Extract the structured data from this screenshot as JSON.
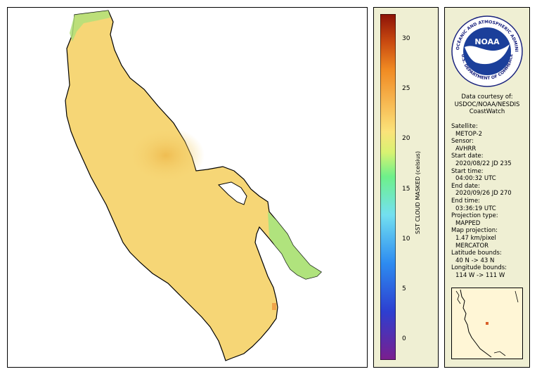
{
  "colorbar": {
    "label": "SST CLOUD MASKED (celsius)",
    "min": -2,
    "max": 32.5,
    "ticks": [
      "0",
      "5",
      "10",
      "15",
      "20",
      "25",
      "30"
    ]
  },
  "courtesy": {
    "line1": "Data courtesy of:",
    "line2": "USDOC/NOAA/NESDIS",
    "line3": "CoastWatch"
  },
  "logo": {
    "center_text": "NOAA",
    "ring_top": "NATIONAL OCEANIC AND ATMOSPHERIC ADMINISTRATION",
    "ring_bottom": "U.S. DEPARTMENT OF COMMERCE"
  },
  "metadata": [
    {
      "label": "Satellite:",
      "value": "METOP-2"
    },
    {
      "label": "Sensor:",
      "value": "AVHRR"
    },
    {
      "label": "Start date:",
      "value": "2020/08/22 JD 235"
    },
    {
      "label": "Start time:",
      "value": "04:00:32 UTC"
    },
    {
      "label": "End date:",
      "value": "2020/09/26 JD 270"
    },
    {
      "label": "End time:",
      "value": "03:36:19 UTC"
    },
    {
      "label": "Projection type:",
      "value": "MAPPED"
    },
    {
      "label": "Map projection:",
      "value": "1.47 km/pixel"
    },
    {
      "label": "",
      "value": "MERCATOR"
    },
    {
      "label": "Latitude bounds:",
      "value": "40 N -> 43 N"
    },
    {
      "label": "Longitude bounds:",
      "value": "114 W -> 111 W"
    }
  ],
  "colors": {
    "lake_fill": "#f6d676",
    "warm_patch": "#f1c35a",
    "cool_edge": "#9fe07a",
    "panel_bg": "#efefd3",
    "inset_marker": "#d9602a"
  }
}
